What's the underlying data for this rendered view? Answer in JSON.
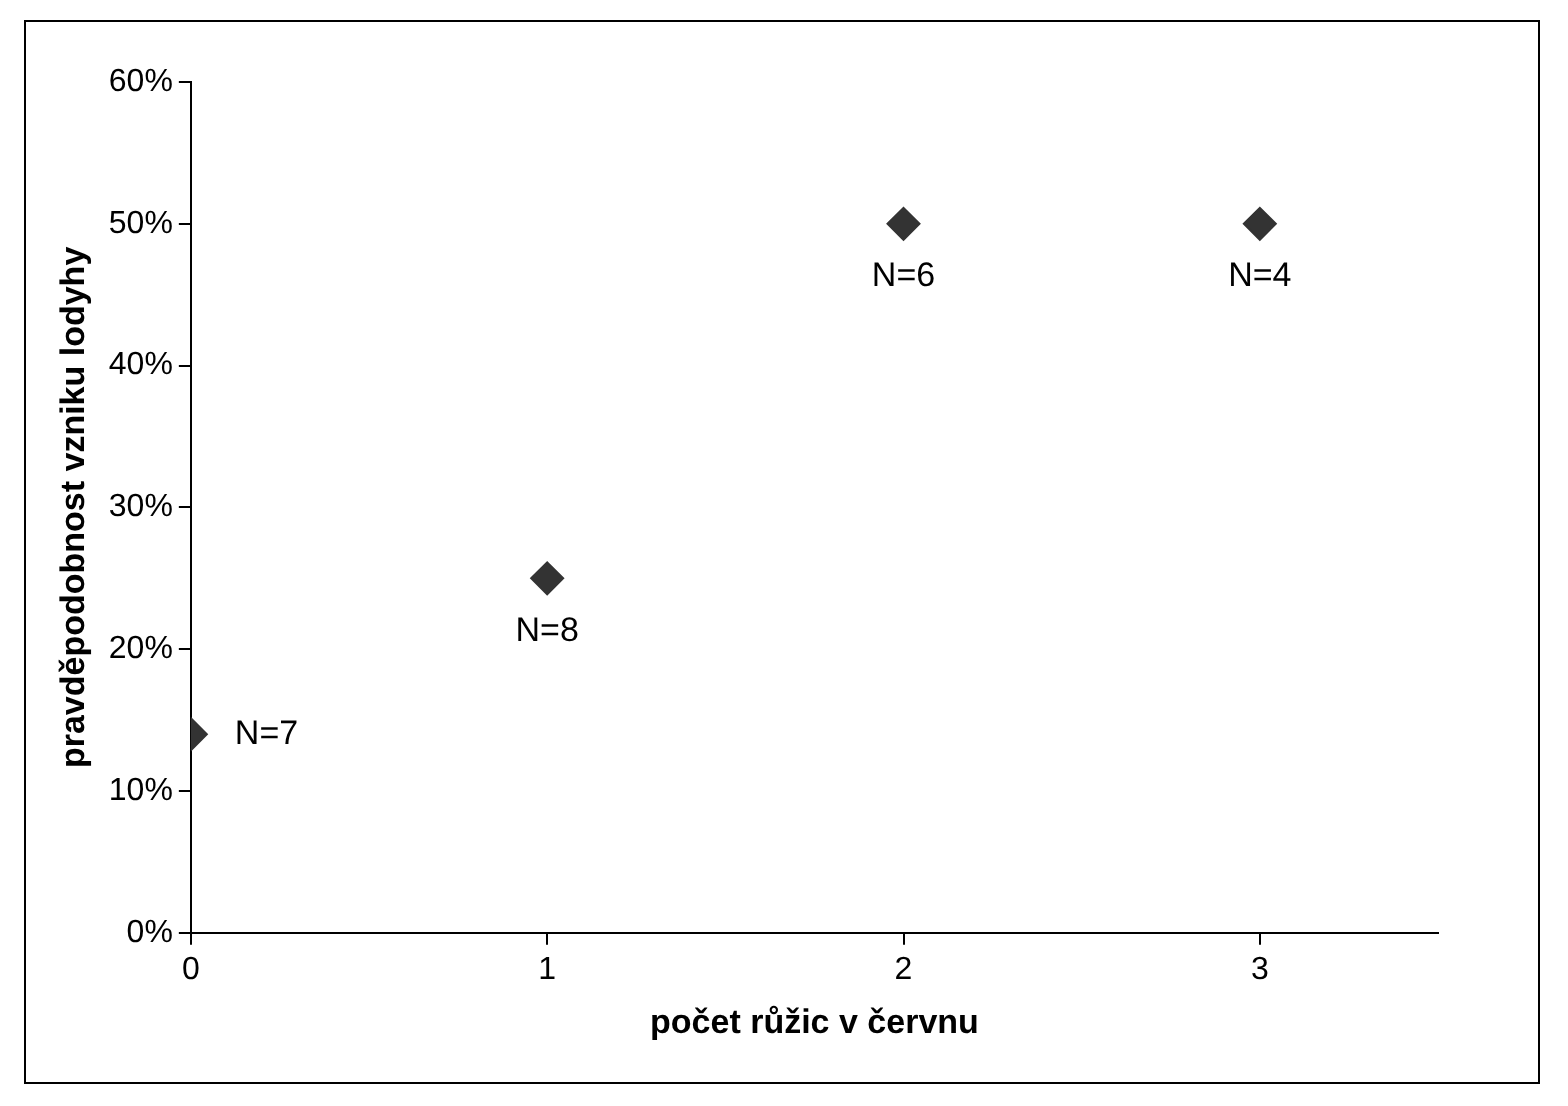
{
  "chart_data": {
    "type": "scatter",
    "xlabel": "počet růžic v červnu",
    "ylabel": "pravděpodobnost vzniku lodyhy",
    "x": [
      0,
      1,
      2,
      3
    ],
    "series": [
      {
        "color": "#333333",
        "values": [
          14,
          25,
          50,
          50
        ]
      }
    ],
    "marker": "diamond",
    "grid": false,
    "legend": false,
    "xlim": [
      0,
      3.5
    ],
    "xticks": [
      0,
      1,
      2,
      3
    ],
    "ylim": [
      0,
      60
    ],
    "yticks": [
      {
        "value": 0,
        "label": "0%"
      },
      {
        "value": 10,
        "label": "10%"
      },
      {
        "value": 20,
        "label": "20%"
      },
      {
        "value": 30,
        "label": "30%"
      },
      {
        "value": 40,
        "label": "40%"
      },
      {
        "value": 50,
        "label": "50%"
      },
      {
        "value": 60,
        "label": "60%"
      }
    ],
    "annotations": [
      {
        "text": "N=7",
        "x": 0,
        "y": 14
      },
      {
        "text": "N=8",
        "x": 1,
        "y": 25
      },
      {
        "text": "N=6",
        "x": 2,
        "y": 50
      },
      {
        "text": "N=4",
        "x": 3,
        "y": 50
      }
    ]
  }
}
